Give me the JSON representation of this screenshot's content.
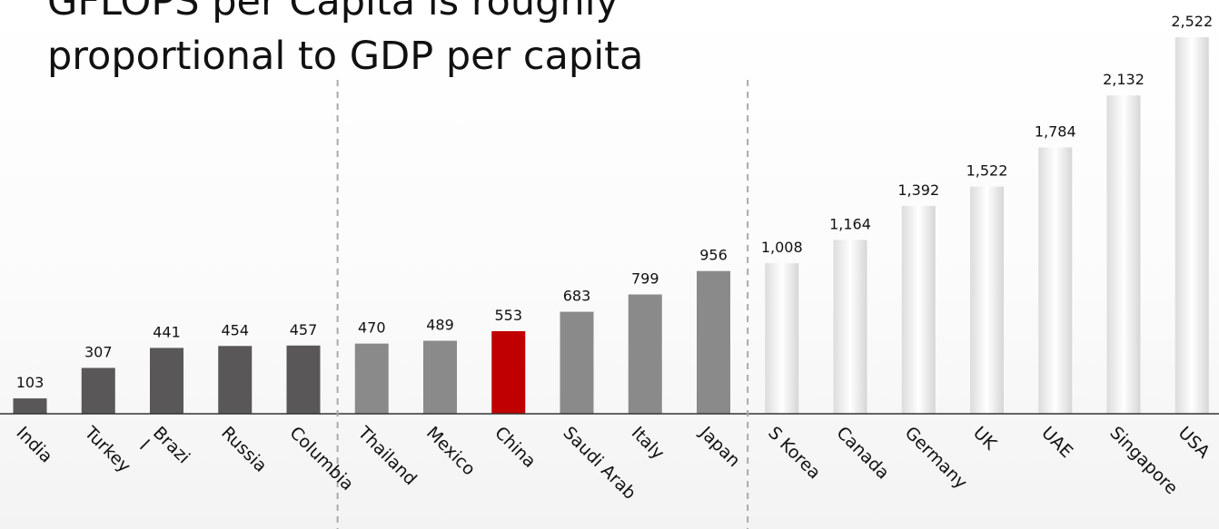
{
  "chart_data": {
    "type": "bar",
    "title": "GFLOPS per Capita is roughly\nproportional to GDP per capita",
    "categories": [
      "India",
      "Turkey",
      "Brazi\nl",
      "Russia",
      "Columbia",
      "Thailand",
      "Mexico",
      "China",
      "Saudi Arab",
      "Italy",
      "Japan",
      "S Korea",
      "Canada",
      "Germany",
      "UK",
      "UAE",
      "Singapore",
      "USA"
    ],
    "values": [
      103,
      307,
      441,
      454,
      457,
      470,
      489,
      553,
      683,
      799,
      956,
      1008,
      1164,
      1392,
      1522,
      1784,
      2132,
      2522
    ],
    "value_labels": [
      "103",
      "307",
      "441",
      "454",
      "457",
      "470",
      "489",
      "553",
      "683",
      "799",
      "956",
      "1,008",
      "1,164",
      "1,392",
      "1,522",
      "1,784",
      "2,132",
      "2,522"
    ],
    "groups": [
      {
        "members": [
          0,
          1,
          2,
          3,
          4
        ],
        "color": "#595757"
      },
      {
        "members": [
          5,
          6,
          7,
          8,
          9,
          10
        ],
        "color": "#8a8a8a"
      },
      {
        "members": [
          11,
          12,
          13,
          14,
          15,
          16,
          17
        ],
        "color": "#eeeeee"
      }
    ],
    "highlight": {
      "category": "China",
      "color": "#c00000"
    },
    "xlabel": "",
    "ylabel": "",
    "ylim": [
      0,
      2522
    ],
    "grid": false,
    "legend": "none",
    "group_dividers": true
  }
}
